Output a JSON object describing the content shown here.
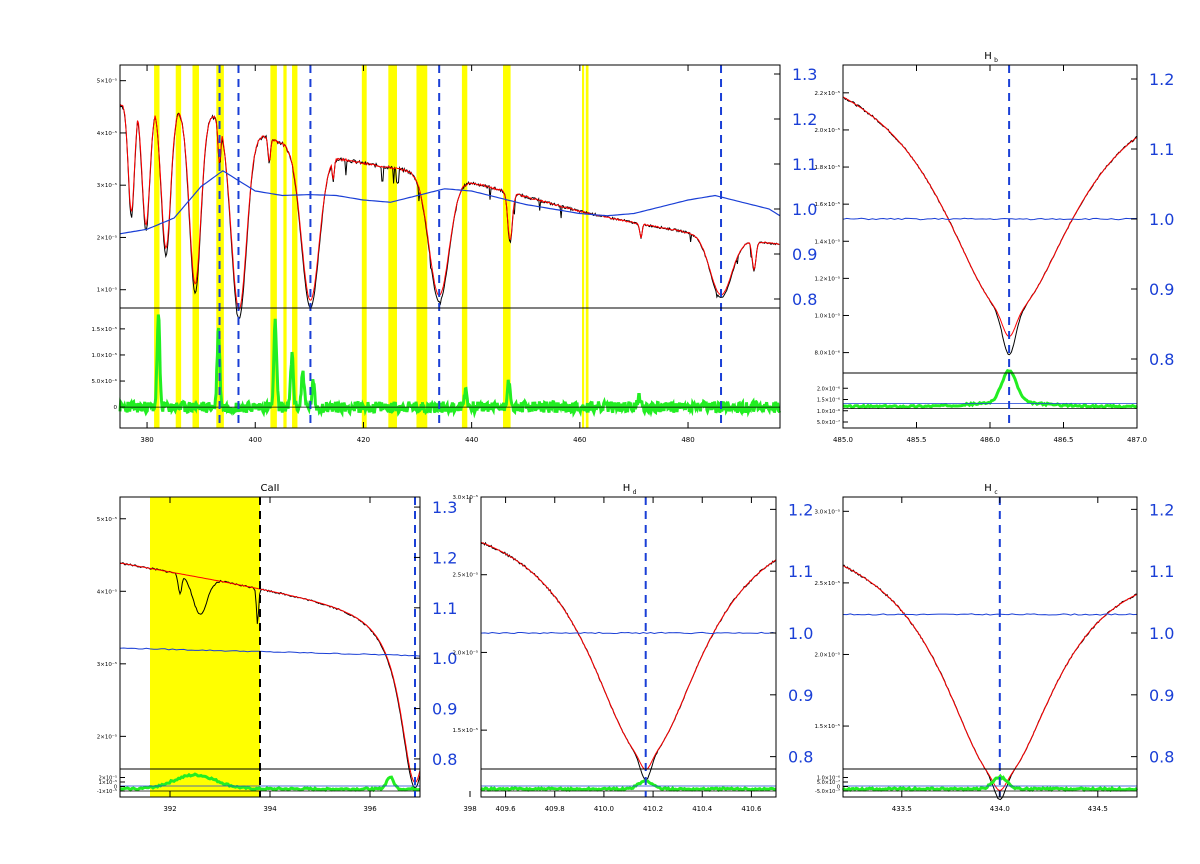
{
  "colors": {
    "observed": "#000000",
    "model": "#ff0000",
    "ratio": "#1a3fd6",
    "residual": "#22ee22",
    "highlight": "#ffff00",
    "line_marker": "#1a3fd6",
    "right_axis": "#1a3fd6"
  },
  "chart_data": [
    {
      "panel": "overview",
      "type": "line",
      "title": "",
      "xlabel": "",
      "xlim": [
        375,
        497
      ],
      "xticks": [
        "380",
        "400",
        "420",
        "440",
        "460",
        "480"
      ],
      "ylim": [
        6.5e-06,
        5.3e-05
      ],
      "yticks": [
        "1×10⁻⁵",
        "2×10⁻⁵",
        "3×10⁻⁵",
        "4×10⁻⁵",
        "5×10⁻⁵"
      ],
      "right_ylim": [
        0.78,
        1.32
      ],
      "right_yticks": [
        "0.8",
        "0.9",
        "1.0",
        "1.1",
        "1.2",
        "1.3"
      ],
      "residual_ylim": [
        -4e-06,
        1.9e-05
      ],
      "residual_yticks": [
        "0",
        "5.0×10⁻⁶",
        "1.0×10⁻⁵",
        "1.5×10⁻⁵"
      ],
      "highlight_bands": [
        [
          381.3,
          382.3
        ],
        [
          385.3,
          386.3
        ],
        [
          388.4,
          389.6
        ],
        [
          392.8,
          394.2
        ],
        [
          402.8,
          404.0
        ],
        [
          405.2,
          405.8
        ],
        [
          406.8,
          407.8
        ],
        [
          419.7,
          420.6
        ],
        [
          424.6,
          426.2
        ],
        [
          429.8,
          431.8
        ],
        [
          438.2,
          439.2
        ],
        [
          445.8,
          447.2
        ],
        [
          460.4,
          460.8
        ],
        [
          461.1,
          461.6
        ]
      ],
      "line_markers": [
        393.4,
        396.9,
        410.2,
        434.0,
        486.1
      ],
      "continuum": [
        [
          375,
          4.55e-05
        ],
        [
          381,
          4.48e-05
        ],
        [
          390,
          4.42e-05
        ],
        [
          400,
          4e-05
        ],
        [
          410,
          3.62e-05
        ],
        [
          420,
          3.42e-05
        ],
        [
          430,
          3.25e-05
        ],
        [
          440,
          3.05e-05
        ],
        [
          450,
          2.78e-05
        ],
        [
          460,
          2.5e-05
        ],
        [
          470,
          2.28e-05
        ],
        [
          480,
          2.1e-05
        ],
        [
          490,
          1.95e-05
        ],
        [
          497,
          1.87e-05
        ]
      ],
      "absorption_lines": [
        {
          "c": 377.1,
          "w": 0.8,
          "d": 0.45
        },
        {
          "c": 379.8,
          "w": 1.0,
          "d": 0.5
        },
        {
          "c": 383.5,
          "w": 1.2,
          "d": 0.6
        },
        {
          "c": 388.9,
          "w": 1.5,
          "d": 0.75
        },
        {
          "c": 393.4,
          "w": 0.4,
          "d": 0.2
        },
        {
          "c": 397.0,
          "w": 2.0,
          "d": 0.85
        },
        {
          "c": 410.2,
          "w": 2.3,
          "d": 0.78
        },
        {
          "c": 434.0,
          "w": 2.6,
          "d": 0.72
        },
        {
          "c": 486.1,
          "w": 2.8,
          "d": 0.55
        },
        {
          "c": 402.6,
          "w": 0.3,
          "d": 0.12
        },
        {
          "c": 412.1,
          "w": 0.3,
          "d": 0.1
        },
        {
          "c": 414.4,
          "w": 0.3,
          "d": 0.12
        },
        {
          "c": 447.1,
          "w": 0.6,
          "d": 0.32
        },
        {
          "c": 471.3,
          "w": 0.3,
          "d": 0.12
        },
        {
          "c": 492.2,
          "w": 0.5,
          "d": 0.28
        }
      ],
      "ratio_curve": [
        [
          375,
          0.945
        ],
        [
          380,
          0.955
        ],
        [
          385,
          0.98
        ],
        [
          390,
          1.05
        ],
        [
          394,
          1.085
        ],
        [
          400,
          1.04
        ],
        [
          405,
          1.03
        ],
        [
          410,
          1.032
        ],
        [
          415,
          1.03
        ],
        [
          420,
          1.02
        ],
        [
          425,
          1.015
        ],
        [
          430,
          1.03
        ],
        [
          435,
          1.045
        ],
        [
          440,
          1.04
        ],
        [
          445,
          1.025
        ],
        [
          450,
          1.01
        ],
        [
          455,
          1.0
        ],
        [
          460,
          0.99
        ],
        [
          465,
          0.985
        ],
        [
          470,
          0.99
        ],
        [
          475,
          1.005
        ],
        [
          480,
          1.02
        ],
        [
          485,
          1.03
        ],
        [
          490,
          1.015
        ],
        [
          495,
          1.0
        ],
        [
          497,
          0.985
        ]
      ],
      "residual_spikes": [
        {
          "c": 382.1,
          "h": 1.72e-05
        },
        {
          "c": 393.2,
          "h": 1.5e-05
        },
        {
          "c": 403.7,
          "h": 1.62e-05
        },
        {
          "c": 406.8,
          "h": 1e-05
        },
        {
          "c": 408.8,
          "h": 7e-06
        },
        {
          "c": 410.7,
          "h": 4.5e-06
        },
        {
          "c": 438.9,
          "h": 3.5e-06
        },
        {
          "c": 446.8,
          "h": 5.3e-06
        },
        {
          "c": 471.0,
          "h": 2e-06
        }
      ]
    },
    {
      "panel": "H_b",
      "title_main": "H",
      "title_sub": "b",
      "type": "line",
      "xlim": [
        485.0,
        487.0
      ],
      "xticks": [
        "485.0",
        "485.5",
        "486.0",
        "486.5",
        "487.0"
      ],
      "ylim": [
        6.9e-06,
        2.35e-05
      ],
      "yticks": [
        "8.0×10⁻⁶",
        "1.0×10⁻⁵",
        "1.2×10⁻⁵",
        "1.4×10⁻⁵",
        "1.6×10⁻⁵",
        "1.8×10⁻⁵",
        "2.0×10⁻⁵",
        "2.2×10⁻⁵"
      ],
      "right_ylim": [
        0.78,
        1.22
      ],
      "right_yticks": [
        "0.8",
        "0.9",
        "1.0",
        "1.1",
        "1.2"
      ],
      "residual_yticks": [
        "5.0×10⁻⁷",
        "1.0×10⁻⁶",
        "1.5×10⁻⁶",
        "2.0×10⁻⁶"
      ],
      "line_marker": 486.13,
      "ratio_level": 1.0
    },
    {
      "panel": "CaII",
      "title": "CaII",
      "type": "line",
      "xlim": [
        391.0,
        397.0
      ],
      "xticks": [
        "392",
        "394",
        "396",
        "398"
      ],
      "ylim": [
        1.55e-05,
        5.3e-05
      ],
      "yticks": [
        "2×10⁻⁵",
        "3×10⁻⁵",
        "4×10⁻⁵",
        "5×10⁻⁵"
      ],
      "right_ylim": [
        0.78,
        1.32
      ],
      "right_yticks": [
        "0.8",
        "0.9",
        "1.0",
        "1.1",
        "1.2",
        "1.3"
      ],
      "residual_yticks": [
        "-1×10⁻⁵",
        "0",
        "1×10⁻⁵",
        "2×10⁻⁵"
      ],
      "highlight_band": [
        391.6,
        393.8
      ],
      "line_markers": [
        393.8,
        396.9
      ],
      "ratio_level": [
        1.02,
        1.005
      ]
    },
    {
      "panel": "H_d",
      "title_main": "H",
      "title_sub": "d",
      "type": "line",
      "xlim": [
        409.5,
        410.7
      ],
      "xticks": [
        "409.6",
        "409.8",
        "410.0",
        "410.2",
        "410.4",
        "410.6"
      ],
      "ylim": [
        1.25e-05,
        3e-05
      ],
      "yticks": [
        "1.5×10⁻⁵",
        "2.0×10⁻⁵",
        "2.5×10⁻⁵",
        "3.0×10⁻⁵"
      ],
      "right_ylim": [
        0.78,
        1.22
      ],
      "right_yticks": [
        "0.8",
        "0.9",
        "1.0",
        "1.1",
        "1.2"
      ],
      "line_marker": 410.17,
      "ratio_level": 1.0
    },
    {
      "panel": "H_c",
      "title_main": "H",
      "title_sub": "c",
      "type": "line",
      "xlim": [
        433.2,
        434.7
      ],
      "xticks": [
        "433.5",
        "434.0",
        "434.5"
      ],
      "ylim": [
        1.2e-05,
        3.1e-05
      ],
      "yticks": [
        "1.5×10⁻⁵",
        "2.0×10⁻⁵",
        "2.5×10⁻⁵",
        "3.0×10⁻⁵"
      ],
      "right_ylim": [
        0.78,
        1.22
      ],
      "right_yticks": [
        "0.8",
        "0.9",
        "1.0",
        "1.1",
        "1.2"
      ],
      "residual_yticks": [
        "-5.0×10⁻⁷",
        "0",
        "5.0×10⁻⁷",
        "1.0×10⁻⁶"
      ],
      "line_marker": 434.0,
      "ratio_level": 1.03
    }
  ]
}
